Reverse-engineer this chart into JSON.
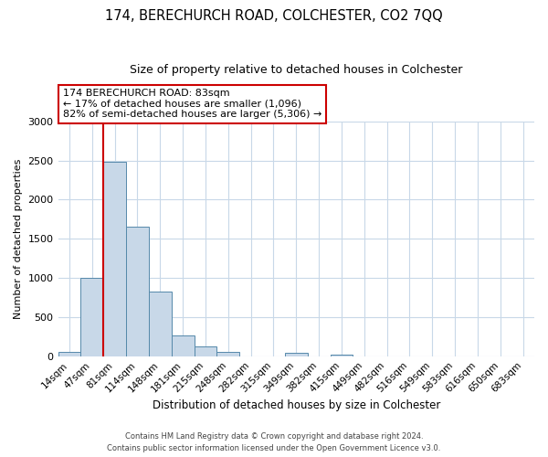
{
  "title": "174, BERECHURCH ROAD, COLCHESTER, CO2 7QQ",
  "subtitle": "Size of property relative to detached houses in Colchester",
  "xlabel": "Distribution of detached houses by size in Colchester",
  "ylabel": "Number of detached properties",
  "footnote1": "Contains HM Land Registry data © Crown copyright and database right 2024.",
  "footnote2": "Contains public sector information licensed under the Open Government Licence v3.0.",
  "bar_labels": [
    "14sqm",
    "47sqm",
    "81sqm",
    "114sqm",
    "148sqm",
    "181sqm",
    "215sqm",
    "248sqm",
    "282sqm",
    "315sqm",
    "349sqm",
    "382sqm",
    "415sqm",
    "449sqm",
    "482sqm",
    "516sqm",
    "549sqm",
    "583sqm",
    "616sqm",
    "650sqm",
    "683sqm"
  ],
  "bar_values": [
    50,
    1000,
    2480,
    1660,
    830,
    270,
    120,
    50,
    0,
    0,
    40,
    0,
    20,
    0,
    0,
    0,
    0,
    0,
    0,
    0,
    0
  ],
  "bar_color": "#c8d8e8",
  "bar_edge_color": "#5588aa",
  "ylim": [
    0,
    3000
  ],
  "yticks": [
    0,
    500,
    1000,
    1500,
    2000,
    2500,
    3000
  ],
  "red_line_index": 2,
  "annotation_title": "174 BERECHURCH ROAD: 83sqm",
  "annotation_line1": "← 17% of detached houses are smaller (1,096)",
  "annotation_line2": "82% of semi-detached houses are larger (5,306) →",
  "annotation_box_color": "#ffffff",
  "annotation_box_edge": "#cc0000",
  "red_line_color": "#cc0000",
  "background_color": "#ffffff",
  "grid_color": "#c8d8e8"
}
